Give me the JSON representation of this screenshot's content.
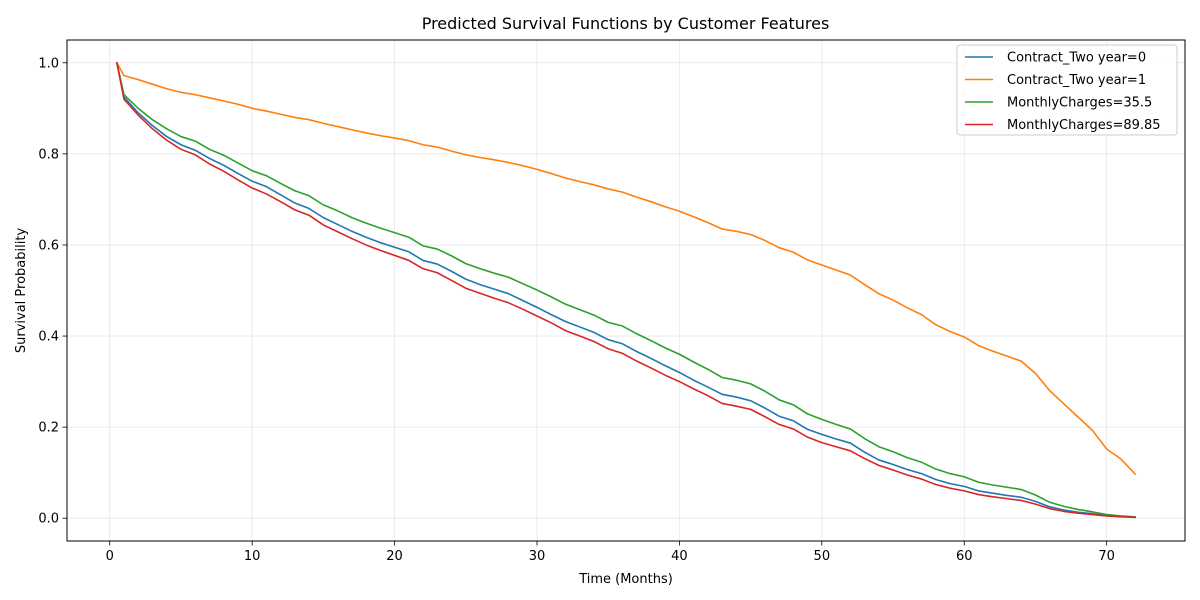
{
  "chart_data": {
    "type": "line",
    "title": "Predicted Survival Functions by Customer Features",
    "xlabel": "Time (Months)",
    "ylabel": "Survival Probability",
    "xlim": [
      -3,
      75.5
    ],
    "ylim": [
      -0.05,
      1.05
    ],
    "xticks": [
      0,
      10,
      20,
      30,
      40,
      50,
      60,
      70
    ],
    "yticks": [
      0.0,
      0.2,
      0.4,
      0.6,
      0.8,
      1.0
    ],
    "grid": true,
    "legend_position": "top-right",
    "series": [
      {
        "name": "Contract_Two year=0",
        "color": "#1f77b4",
        "points": [
          [
            0.5,
            1.0
          ],
          [
            1,
            0.925
          ],
          [
            2,
            0.89
          ],
          [
            3,
            0.862
          ],
          [
            4,
            0.838
          ],
          [
            5,
            0.82
          ],
          [
            6,
            0.808
          ],
          [
            7,
            0.79
          ],
          [
            8,
            0.775
          ],
          [
            9,
            0.757
          ],
          [
            10,
            0.74
          ],
          [
            11,
            0.728
          ],
          [
            12,
            0.71
          ],
          [
            13,
            0.692
          ],
          [
            14,
            0.68
          ],
          [
            15,
            0.66
          ],
          [
            16,
            0.645
          ],
          [
            17,
            0.63
          ],
          [
            18,
            0.617
          ],
          [
            19,
            0.605
          ],
          [
            20,
            0.595
          ],
          [
            21,
            0.585
          ],
          [
            22,
            0.566
          ],
          [
            23,
            0.558
          ],
          [
            24,
            0.542
          ],
          [
            25,
            0.525
          ],
          [
            26,
            0.513
          ],
          [
            27,
            0.503
          ],
          [
            28,
            0.493
          ],
          [
            29,
            0.478
          ],
          [
            30,
            0.463
          ],
          [
            31,
            0.447
          ],
          [
            32,
            0.432
          ],
          [
            33,
            0.42
          ],
          [
            34,
            0.408
          ],
          [
            35,
            0.392
          ],
          [
            36,
            0.383
          ],
          [
            37,
            0.366
          ],
          [
            38,
            0.351
          ],
          [
            39,
            0.335
          ],
          [
            40,
            0.32
          ],
          [
            41,
            0.303
          ],
          [
            42,
            0.288
          ],
          [
            43,
            0.272
          ],
          [
            44,
            0.266
          ],
          [
            45,
            0.258
          ],
          [
            46,
            0.242
          ],
          [
            47,
            0.224
          ],
          [
            48,
            0.214
          ],
          [
            49,
            0.195
          ],
          [
            50,
            0.184
          ],
          [
            51,
            0.174
          ],
          [
            52,
            0.165
          ],
          [
            53,
            0.145
          ],
          [
            54,
            0.128
          ],
          [
            55,
            0.118
          ],
          [
            56,
            0.107
          ],
          [
            57,
            0.098
          ],
          [
            58,
            0.085
          ],
          [
            59,
            0.076
          ],
          [
            60,
            0.07
          ],
          [
            61,
            0.06
          ],
          [
            62,
            0.055
          ],
          [
            63,
            0.05
          ],
          [
            64,
            0.046
          ],
          [
            65,
            0.037
          ],
          [
            66,
            0.025
          ],
          [
            67,
            0.018
          ],
          [
            68,
            0.013
          ],
          [
            69,
            0.01
          ],
          [
            70,
            0.006
          ],
          [
            71,
            0.004
          ],
          [
            72,
            0.002
          ]
        ]
      },
      {
        "name": "Contract_Two year=1",
        "color": "#ff7f0e",
        "points": [
          [
            0.5,
            1.0
          ],
          [
            1,
            0.972
          ],
          [
            2,
            0.963
          ],
          [
            3,
            0.953
          ],
          [
            4,
            0.943
          ],
          [
            5,
            0.935
          ],
          [
            6,
            0.93
          ],
          [
            7,
            0.923
          ],
          [
            8,
            0.916
          ],
          [
            9,
            0.909
          ],
          [
            10,
            0.9
          ],
          [
            11,
            0.894
          ],
          [
            12,
            0.887
          ],
          [
            13,
            0.88
          ],
          [
            14,
            0.875
          ],
          [
            15,
            0.867
          ],
          [
            16,
            0.86
          ],
          [
            17,
            0.853
          ],
          [
            18,
            0.846
          ],
          [
            19,
            0.84
          ],
          [
            20,
            0.835
          ],
          [
            21,
            0.829
          ],
          [
            22,
            0.82
          ],
          [
            23,
            0.815
          ],
          [
            24,
            0.806
          ],
          [
            25,
            0.798
          ],
          [
            26,
            0.792
          ],
          [
            27,
            0.787
          ],
          [
            28,
            0.781
          ],
          [
            29,
            0.774
          ],
          [
            30,
            0.766
          ],
          [
            31,
            0.757
          ],
          [
            32,
            0.747
          ],
          [
            33,
            0.739
          ],
          [
            34,
            0.732
          ],
          [
            35,
            0.723
          ],
          [
            36,
            0.716
          ],
          [
            37,
            0.705
          ],
          [
            38,
            0.695
          ],
          [
            39,
            0.684
          ],
          [
            40,
            0.674
          ],
          [
            41,
            0.662
          ],
          [
            42,
            0.649
          ],
          [
            43,
            0.635
          ],
          [
            44,
            0.63
          ],
          [
            45,
            0.623
          ],
          [
            46,
            0.61
          ],
          [
            47,
            0.594
          ],
          [
            48,
            0.584
          ],
          [
            49,
            0.567
          ],
          [
            50,
            0.556
          ],
          [
            51,
            0.545
          ],
          [
            52,
            0.534
          ],
          [
            53,
            0.513
          ],
          [
            54,
            0.493
          ],
          [
            55,
            0.479
          ],
          [
            56,
            0.462
          ],
          [
            57,
            0.447
          ],
          [
            58,
            0.425
          ],
          [
            59,
            0.41
          ],
          [
            60,
            0.398
          ],
          [
            61,
            0.379
          ],
          [
            62,
            0.367
          ],
          [
            63,
            0.356
          ],
          [
            64,
            0.345
          ],
          [
            65,
            0.318
          ],
          [
            66,
            0.28
          ],
          [
            67,
            0.251
          ],
          [
            68,
            0.222
          ],
          [
            69,
            0.193
          ],
          [
            70,
            0.152
          ],
          [
            71,
            0.13
          ],
          [
            72,
            0.097
          ]
        ]
      },
      {
        "name": "MonthlyCharges=35.5",
        "color": "#2ca02c",
        "points": [
          [
            0.5,
            1.0
          ],
          [
            1,
            0.93
          ],
          [
            2,
            0.9
          ],
          [
            3,
            0.875
          ],
          [
            4,
            0.855
          ],
          [
            5,
            0.838
          ],
          [
            6,
            0.828
          ],
          [
            7,
            0.81
          ],
          [
            8,
            0.797
          ],
          [
            9,
            0.78
          ],
          [
            10,
            0.763
          ],
          [
            11,
            0.752
          ],
          [
            12,
            0.735
          ],
          [
            13,
            0.719
          ],
          [
            14,
            0.708
          ],
          [
            15,
            0.688
          ],
          [
            16,
            0.675
          ],
          [
            17,
            0.66
          ],
          [
            18,
            0.648
          ],
          [
            19,
            0.637
          ],
          [
            20,
            0.627
          ],
          [
            21,
            0.617
          ],
          [
            22,
            0.598
          ],
          [
            23,
            0.591
          ],
          [
            24,
            0.576
          ],
          [
            25,
            0.559
          ],
          [
            26,
            0.548
          ],
          [
            27,
            0.538
          ],
          [
            28,
            0.529
          ],
          [
            29,
            0.515
          ],
          [
            30,
            0.501
          ],
          [
            31,
            0.486
          ],
          [
            32,
            0.47
          ],
          [
            33,
            0.458
          ],
          [
            34,
            0.446
          ],
          [
            35,
            0.43
          ],
          [
            36,
            0.422
          ],
          [
            37,
            0.405
          ],
          [
            38,
            0.39
          ],
          [
            39,
            0.374
          ],
          [
            40,
            0.36
          ],
          [
            41,
            0.343
          ],
          [
            42,
            0.327
          ],
          [
            43,
            0.309
          ],
          [
            44,
            0.303
          ],
          [
            45,
            0.295
          ],
          [
            46,
            0.279
          ],
          [
            47,
            0.26
          ],
          [
            48,
            0.249
          ],
          [
            49,
            0.229
          ],
          [
            50,
            0.217
          ],
          [
            51,
            0.206
          ],
          [
            52,
            0.196
          ],
          [
            53,
            0.175
          ],
          [
            54,
            0.157
          ],
          [
            55,
            0.146
          ],
          [
            56,
            0.133
          ],
          [
            57,
            0.123
          ],
          [
            58,
            0.108
          ],
          [
            59,
            0.098
          ],
          [
            60,
            0.091
          ],
          [
            61,
            0.079
          ],
          [
            62,
            0.073
          ],
          [
            63,
            0.068
          ],
          [
            64,
            0.063
          ],
          [
            65,
            0.051
          ],
          [
            66,
            0.035
          ],
          [
            67,
            0.026
          ],
          [
            68,
            0.019
          ],
          [
            69,
            0.014
          ],
          [
            70,
            0.008
          ],
          [
            71,
            0.005
          ],
          [
            72,
            0.003
          ]
        ]
      },
      {
        "name": "MonthlyCharges=89.85",
        "color": "#d62728",
        "points": [
          [
            0.5,
            1.0
          ],
          [
            1,
            0.92
          ],
          [
            2,
            0.885
          ],
          [
            3,
            0.855
          ],
          [
            4,
            0.83
          ],
          [
            5,
            0.81
          ],
          [
            6,
            0.798
          ],
          [
            7,
            0.778
          ],
          [
            8,
            0.762
          ],
          [
            9,
            0.743
          ],
          [
            10,
            0.725
          ],
          [
            11,
            0.712
          ],
          [
            12,
            0.695
          ],
          [
            13,
            0.677
          ],
          [
            14,
            0.665
          ],
          [
            15,
            0.644
          ],
          [
            16,
            0.629
          ],
          [
            17,
            0.614
          ],
          [
            18,
            0.6
          ],
          [
            19,
            0.588
          ],
          [
            20,
            0.577
          ],
          [
            21,
            0.566
          ],
          [
            22,
            0.548
          ],
          [
            23,
            0.539
          ],
          [
            24,
            0.522
          ],
          [
            25,
            0.505
          ],
          [
            26,
            0.494
          ],
          [
            27,
            0.483
          ],
          [
            28,
            0.473
          ],
          [
            29,
            0.459
          ],
          [
            30,
            0.444
          ],
          [
            31,
            0.429
          ],
          [
            32,
            0.412
          ],
          [
            33,
            0.4
          ],
          [
            34,
            0.388
          ],
          [
            35,
            0.372
          ],
          [
            36,
            0.362
          ],
          [
            37,
            0.345
          ],
          [
            38,
            0.33
          ],
          [
            39,
            0.314
          ],
          [
            40,
            0.3
          ],
          [
            41,
            0.284
          ],
          [
            42,
            0.269
          ],
          [
            43,
            0.252
          ],
          [
            44,
            0.246
          ],
          [
            45,
            0.239
          ],
          [
            46,
            0.223
          ],
          [
            47,
            0.206
          ],
          [
            48,
            0.196
          ],
          [
            49,
            0.178
          ],
          [
            50,
            0.166
          ],
          [
            51,
            0.157
          ],
          [
            52,
            0.148
          ],
          [
            53,
            0.131
          ],
          [
            54,
            0.116
          ],
          [
            55,
            0.106
          ],
          [
            56,
            0.095
          ],
          [
            57,
            0.086
          ],
          [
            58,
            0.074
          ],
          [
            59,
            0.066
          ],
          [
            60,
            0.06
          ],
          [
            61,
            0.052
          ],
          [
            62,
            0.047
          ],
          [
            63,
            0.043
          ],
          [
            64,
            0.039
          ],
          [
            65,
            0.031
          ],
          [
            66,
            0.021
          ],
          [
            67,
            0.015
          ],
          [
            68,
            0.011
          ],
          [
            69,
            0.008
          ],
          [
            70,
            0.005
          ],
          [
            71,
            0.003
          ],
          [
            72,
            0.002
          ]
        ]
      }
    ]
  }
}
